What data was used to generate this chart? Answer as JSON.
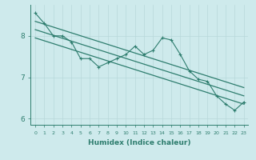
{
  "xlabel": "Humidex (Indice chaleur)",
  "x": [
    0,
    1,
    2,
    3,
    4,
    5,
    6,
    7,
    8,
    9,
    10,
    11,
    12,
    13,
    14,
    15,
    16,
    17,
    18,
    19,
    20,
    21,
    22,
    23
  ],
  "y_main": [
    8.55,
    8.3,
    8.0,
    8.0,
    7.85,
    7.45,
    7.45,
    7.25,
    7.35,
    7.45,
    7.55,
    7.75,
    7.55,
    7.65,
    7.95,
    7.9,
    7.55,
    7.15,
    6.95,
    6.9,
    6.55,
    6.35,
    6.2,
    6.4
  ],
  "trend_line1_start": 8.35,
  "trend_line1_end": 6.75,
  "trend_line2_start": 8.15,
  "trend_line2_end": 6.55,
  "trend_line3_start": 7.95,
  "trend_line3_end": 6.35,
  "bg_color": "#ceeaec",
  "grid_color": "#b8d8da",
  "line_color": "#2e7d6e",
  "ylim": [
    5.85,
    8.75
  ],
  "yticks": [
    6,
    7,
    8
  ],
  "xlim": [
    -0.5,
    23.5
  ]
}
